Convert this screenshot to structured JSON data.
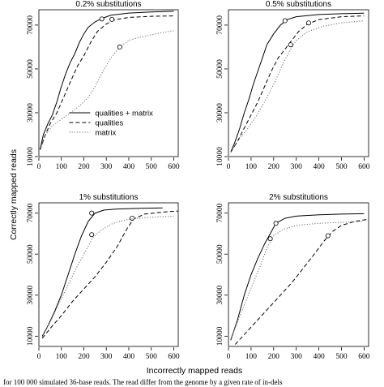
{
  "figure": {
    "y_label": "Correctly mapped reads",
    "x_label": "Incorrectly mapped reads",
    "caption_fragment": "for 100 000 simulated 36-base reads. The read differ from the genome by a given rate of in-dels"
  },
  "chart_data": [
    {
      "type": "line",
      "title": "0.2% substitutions",
      "xlim": [
        0,
        620
      ],
      "ylim": [
        10000,
        77000
      ],
      "x_ticks": [
        0,
        100,
        200,
        300,
        400,
        500,
        600
      ],
      "y_ticks": [
        10000,
        30000,
        50000,
        70000
      ],
      "grid": false,
      "legend": {
        "position": "bottom-right",
        "entries": [
          "qualities + matrix",
          "qualities",
          "matrix"
        ]
      },
      "series": [
        {
          "name": "qualities + matrix",
          "style": "solid",
          "points": [
            [
              5,
              13000
            ],
            [
              20,
              20000
            ],
            [
              40,
              25000
            ],
            [
              60,
              29000
            ],
            [
              80,
              35000
            ],
            [
              100,
              42000
            ],
            [
              120,
              48000
            ],
            [
              140,
              53000
            ],
            [
              160,
              57000
            ],
            [
              180,
              62000
            ],
            [
              200,
              66000
            ],
            [
              220,
              69000
            ],
            [
              250,
              71500
            ],
            [
              280,
              73000
            ],
            [
              320,
              74500
            ],
            [
              400,
              75500
            ],
            [
              500,
              76000
            ],
            [
              600,
              76300
            ]
          ],
          "marker": [
            280,
            72800
          ]
        },
        {
          "name": "qualities",
          "style": "dashed",
          "points": [
            [
              5,
              13000
            ],
            [
              25,
              19000
            ],
            [
              50,
              25000
            ],
            [
              80,
              30000
            ],
            [
              110,
              37000
            ],
            [
              140,
              44000
            ],
            [
              170,
              51000
            ],
            [
              200,
              56000
            ],
            [
              230,
              62000
            ],
            [
              260,
              67000
            ],
            [
              300,
              70500
            ],
            [
              340,
              72500
            ],
            [
              400,
              73500
            ],
            [
              500,
              74000
            ],
            [
              600,
              74200
            ]
          ],
          "marker": [
            325,
            72600
          ]
        },
        {
          "name": "matrix",
          "style": "dotted",
          "points": [
            [
              5,
              13000
            ],
            [
              30,
              20000
            ],
            [
              60,
              24000
            ],
            [
              100,
              27000
            ],
            [
              140,
              30000
            ],
            [
              180,
              33000
            ],
            [
              220,
              37000
            ],
            [
              250,
              42000
            ],
            [
              280,
              48000
            ],
            [
              320,
              55000
            ],
            [
              360,
              60000
            ],
            [
              400,
              63000
            ],
            [
              450,
              64500
            ],
            [
              520,
              66000
            ],
            [
              600,
              67500
            ]
          ],
          "marker": [
            360,
            60000
          ]
        }
      ]
    },
    {
      "type": "line",
      "title": "0.5% substitutions",
      "xlim": [
        0,
        620
      ],
      "ylim": [
        10000,
        77000
      ],
      "x_ticks": [
        0,
        100,
        200,
        300,
        400,
        500,
        600
      ],
      "y_ticks": [
        10000,
        30000,
        50000,
        70000
      ],
      "grid": false,
      "series": [
        {
          "name": "qualities + matrix",
          "style": "solid",
          "points": [
            [
              10,
              12000
            ],
            [
              30,
              17000
            ],
            [
              50,
              23000
            ],
            [
              70,
              30000
            ],
            [
              90,
              36000
            ],
            [
              110,
              43000
            ],
            [
              130,
              49000
            ],
            [
              150,
              55000
            ],
            [
              170,
              61000
            ],
            [
              200,
              66000
            ],
            [
              230,
              70000
            ],
            [
              260,
              72500
            ],
            [
              300,
              73800
            ],
            [
              400,
              74800
            ],
            [
              500,
              75200
            ],
            [
              600,
              75400
            ]
          ],
          "marker": [
            250,
            72000
          ]
        },
        {
          "name": "qualities",
          "style": "dashed",
          "points": [
            [
              10,
              12000
            ],
            [
              40,
              17000
            ],
            [
              70,
              23000
            ],
            [
              100,
              29000
            ],
            [
              130,
              35000
            ],
            [
              160,
              42000
            ],
            [
              190,
              49000
            ],
            [
              220,
              55000
            ],
            [
              250,
              59000
            ],
            [
              280,
              63000
            ],
            [
              310,
              67000
            ],
            [
              350,
              70500
            ],
            [
              400,
              72500
            ],
            [
              500,
              73800
            ],
            [
              600,
              74200
            ]
          ],
          "marker": [
            355,
            71000
          ]
        },
        {
          "name": "matrix",
          "style": "dotted",
          "points": [
            [
              10,
              12000
            ],
            [
              40,
              17000
            ],
            [
              80,
              22000
            ],
            [
              120,
              28000
            ],
            [
              160,
              35000
            ],
            [
              200,
              43000
            ],
            [
              240,
              52000
            ],
            [
              270,
              58000
            ],
            [
              300,
              63000
            ],
            [
              350,
              67000
            ],
            [
              420,
              69500
            ],
            [
              500,
              71000
            ],
            [
              600,
              72000
            ]
          ],
          "marker": [
            275,
            61000
          ]
        }
      ]
    },
    {
      "type": "line",
      "title": "1% substitutions",
      "xlim": [
        0,
        620
      ],
      "ylim": [
        5000,
        75000
      ],
      "x_ticks": [
        0,
        100,
        200,
        300,
        400,
        500,
        600
      ],
      "y_ticks": [
        10000,
        30000,
        50000,
        70000
      ],
      "grid": false,
      "series": [
        {
          "name": "qualities + matrix",
          "style": "solid",
          "points": [
            [
              15,
              10000
            ],
            [
              40,
              15000
            ],
            [
              70,
              22000
            ],
            [
              100,
              30000
            ],
            [
              130,
              40000
            ],
            [
              160,
              50000
            ],
            [
              190,
              59000
            ],
            [
              220,
              66000
            ],
            [
              250,
              70000
            ],
            [
              290,
              71500
            ],
            [
              350,
              72000
            ],
            [
              450,
              72300
            ],
            [
              550,
              72500
            ]
          ],
          "marker": [
            235,
            70000
          ]
        },
        {
          "name": "qualities",
          "style": "dashed",
          "points": [
            [
              15,
              9000
            ],
            [
              60,
              15000
            ],
            [
              100,
              20000
            ],
            [
              150,
              27000
            ],
            [
              200,
              33000
            ],
            [
              250,
              39000
            ],
            [
              300,
              46000
            ],
            [
              350,
              54000
            ],
            [
              390,
              62000
            ],
            [
              420,
              67000
            ],
            [
              470,
              69500
            ],
            [
              550,
              70500
            ],
            [
              620,
              71000
            ]
          ],
          "marker": [
            415,
            67500
          ]
        },
        {
          "name": "matrix",
          "style": "dotted",
          "points": [
            [
              15,
              9500
            ],
            [
              50,
              17000
            ],
            [
              90,
              26000
            ],
            [
              130,
              35000
            ],
            [
              170,
              44000
            ],
            [
              210,
              52000
            ],
            [
              240,
              58000
            ],
            [
              280,
              62000
            ],
            [
              330,
              65000
            ],
            [
              400,
              67000
            ],
            [
              500,
              68000
            ],
            [
              600,
              68500
            ]
          ],
          "marker": [
            235,
            59500
          ]
        }
      ]
    },
    {
      "type": "line",
      "title": "2% substitutions",
      "xlim": [
        0,
        620
      ],
      "ylim": [
        5000,
        75000
      ],
      "x_ticks": [
        0,
        100,
        200,
        300,
        400,
        500,
        600
      ],
      "y_ticks": [
        10000,
        30000,
        50000,
        70000
      ],
      "grid": false,
      "series": [
        {
          "name": "qualities + matrix",
          "style": "solid",
          "points": [
            [
              10,
              8000
            ],
            [
              40,
              18000
            ],
            [
              70,
              30000
            ],
            [
              100,
              40000
            ],
            [
              130,
              48000
            ],
            [
              160,
              55000
            ],
            [
              190,
              61000
            ],
            [
              210,
              65000
            ],
            [
              250,
              67500
            ],
            [
              300,
              68500
            ],
            [
              400,
              69200
            ],
            [
              500,
              69500
            ],
            [
              600,
              69700
            ]
          ],
          "marker": [
            210,
            65000
          ]
        },
        {
          "name": "qualities",
          "style": "dashed",
          "points": [
            [
              30,
              6000
            ],
            [
              80,
              12000
            ],
            [
              130,
              18000
            ],
            [
              180,
              24000
            ],
            [
              230,
              30000
            ],
            [
              280,
              36000
            ],
            [
              330,
              43000
            ],
            [
              380,
              50000
            ],
            [
              420,
              56000
            ],
            [
              460,
              61000
            ],
            [
              500,
              64000
            ],
            [
              560,
              66000
            ],
            [
              620,
              67000
            ]
          ],
          "marker": [
            440,
            59000
          ]
        },
        {
          "name": "matrix",
          "style": "dotted",
          "points": [
            [
              10,
              8500
            ],
            [
              40,
              17000
            ],
            [
              80,
              28000
            ],
            [
              110,
              36000
            ],
            [
              140,
              44000
            ],
            [
              170,
              53000
            ],
            [
              200,
              59000
            ],
            [
              240,
              62000
            ],
            [
              300,
              64000
            ],
            [
              400,
              65000
            ],
            [
              500,
              65500
            ],
            [
              600,
              66000
            ]
          ],
          "marker": [
            185,
            57500
          ]
        }
      ]
    }
  ]
}
